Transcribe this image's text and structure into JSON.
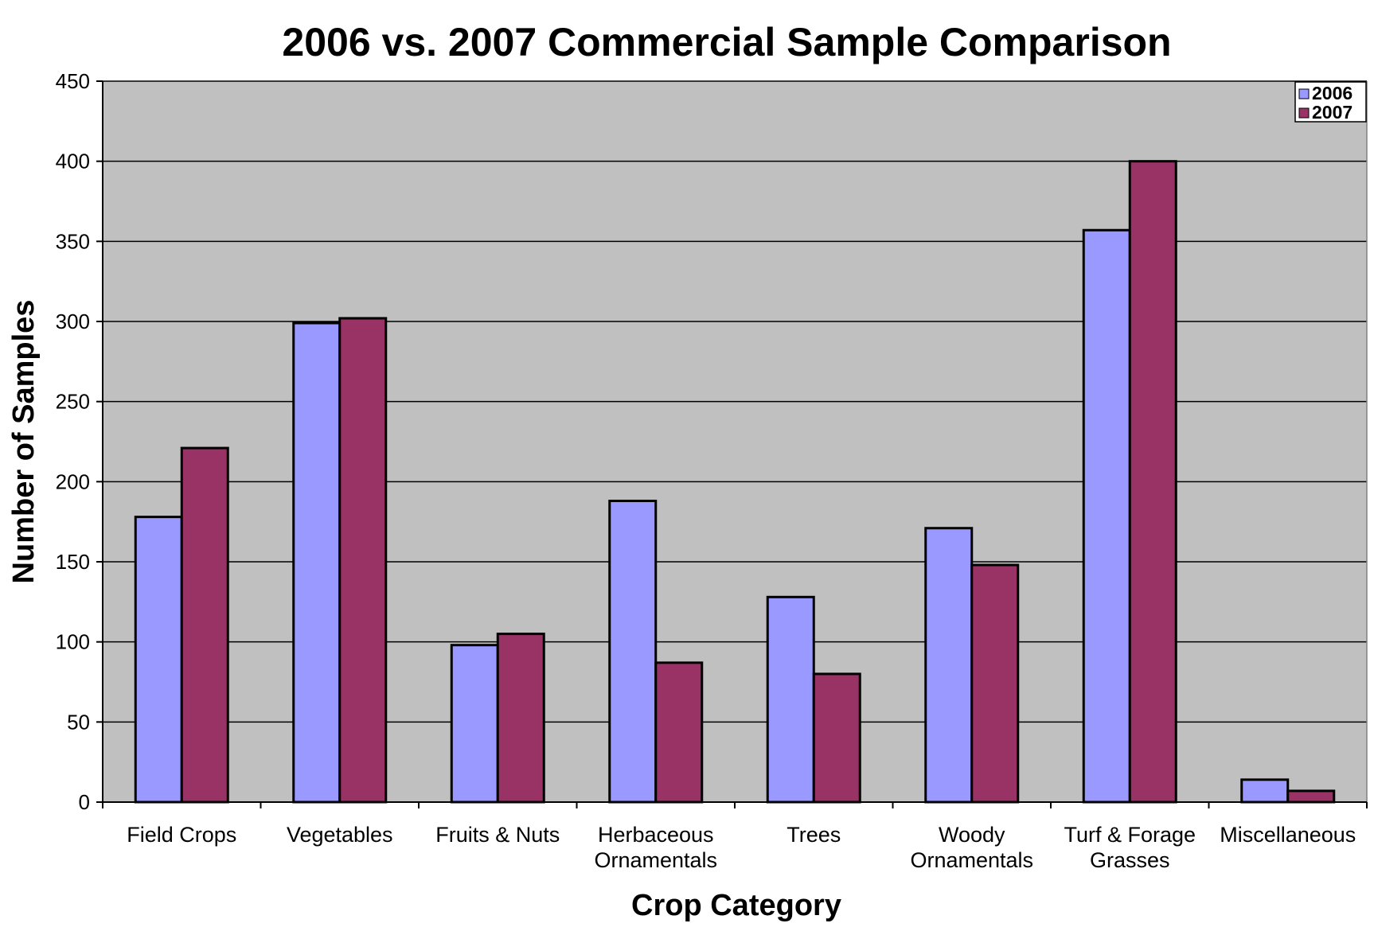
{
  "chart_data": {
    "type": "bar",
    "title": "2006 vs. 2007 Commercial Sample Comparison",
    "xlabel": "Crop Category",
    "ylabel": "Number of Samples",
    "ylim": [
      0,
      450
    ],
    "yticks": [
      0,
      50,
      100,
      150,
      200,
      250,
      300,
      350,
      400,
      450
    ],
    "categories": [
      [
        "Field Crops"
      ],
      [
        "Vegetables"
      ],
      [
        "Fruits & Nuts"
      ],
      [
        "Herbaceous",
        "Ornamentals"
      ],
      [
        "Trees"
      ],
      [
        "Woody",
        "Ornamentals"
      ],
      [
        "Turf & Forage",
        "Grasses"
      ],
      [
        "Miscellaneous"
      ]
    ],
    "series": [
      {
        "name": "2006",
        "color": "#9999ff",
        "values": [
          178,
          299,
          98,
          188,
          128,
          171,
          357,
          14
        ]
      },
      {
        "name": "2007",
        "color": "#993366",
        "values": [
          221,
          302,
          105,
          87,
          80,
          148,
          400,
          7
        ]
      }
    ],
    "grid": true,
    "plot_background": "#c0c0c0",
    "legend_position": "top-right"
  }
}
